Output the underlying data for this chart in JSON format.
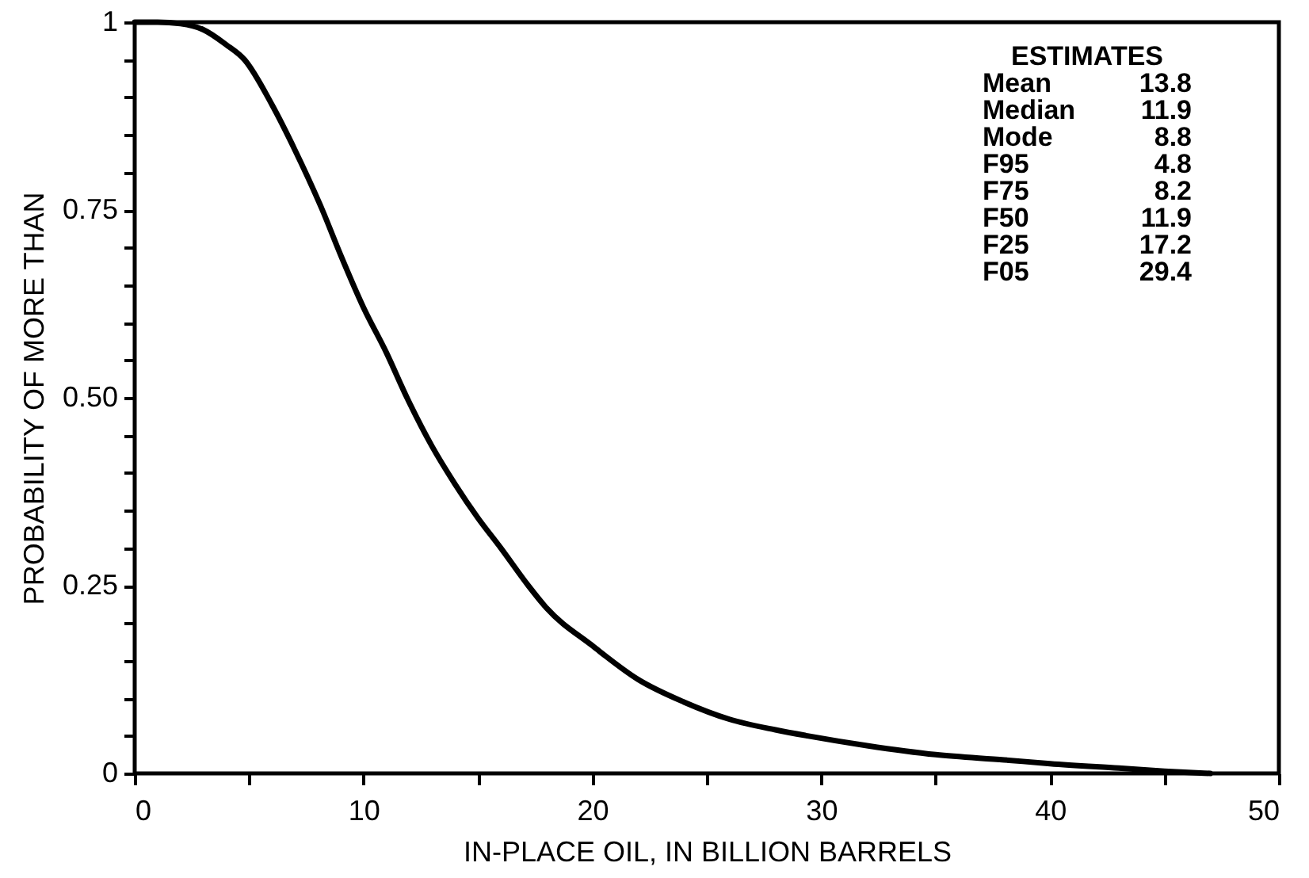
{
  "chart_data": {
    "type": "line",
    "xlabel": "IN-PLACE OIL, IN BILLION BARRELS",
    "ylabel": "PROBABILITY OF MORE THAN",
    "x": [
      0,
      1,
      2,
      3,
      4,
      4.8,
      6,
      7,
      8.2,
      9,
      10,
      11,
      11.9,
      13,
      14,
      15,
      16,
      17.2,
      18,
      20,
      22,
      24,
      26,
      28,
      29.4,
      32,
      35,
      38,
      40,
      43,
      45,
      47
    ],
    "series": [
      {
        "color": "#000000",
        "values": [
          1.0,
          1.0,
          0.998,
          0.99,
          0.97,
          0.95,
          0.89,
          0.83,
          0.75,
          0.69,
          0.62,
          0.56,
          0.5,
          0.435,
          0.385,
          0.34,
          0.3,
          0.25,
          0.22,
          0.17,
          0.125,
          0.095,
          0.072,
          0.058,
          0.05,
          0.037,
          0.025,
          0.018,
          0.013,
          0.007,
          0.003,
          0
        ]
      }
    ],
    "xlim": [
      0,
      50
    ],
    "xticks": [
      0,
      {
        "value": 5,
        "label": null
      },
      10,
      {
        "value": 15,
        "label": null
      },
      20,
      {
        "value": 25,
        "label": null
      },
      30,
      {
        "value": 35,
        "label": null
      },
      40,
      {
        "value": 45,
        "label": null
      },
      50
    ],
    "ylim": [
      0,
      1
    ],
    "yticks": [
      0,
      {
        "value": 0.05,
        "label": null
      },
      {
        "value": 0.1,
        "label": null
      },
      {
        "value": 0.15,
        "label": null
      },
      {
        "value": 0.2,
        "label": null
      },
      0.25,
      {
        "value": 0.3,
        "label": null
      },
      {
        "value": 0.35,
        "label": null
      },
      {
        "value": 0.4,
        "label": null
      },
      {
        "value": 0.45,
        "label": null
      },
      {
        "value": 0.5,
        "label": "0.50"
      },
      {
        "value": 0.55,
        "label": null
      },
      {
        "value": 0.6,
        "label": null
      },
      {
        "value": 0.65,
        "label": null
      },
      {
        "value": 0.7,
        "label": null
      },
      0.75,
      {
        "value": 0.8,
        "label": null
      },
      {
        "value": 0.85,
        "label": null
      },
      {
        "value": 0.9,
        "label": null
      },
      {
        "value": 0.95,
        "label": null
      },
      1
    ],
    "annotations": [
      "ESTIMATES",
      "Mean 13.8",
      "Median 11.9",
      "Mode 8.8",
      "F95 4.8",
      "F75 8.2",
      "F50 11.9",
      "F25 17.2",
      "F05 29.4"
    ],
    "marker": "none",
    "line_style": "solid"
  }
}
